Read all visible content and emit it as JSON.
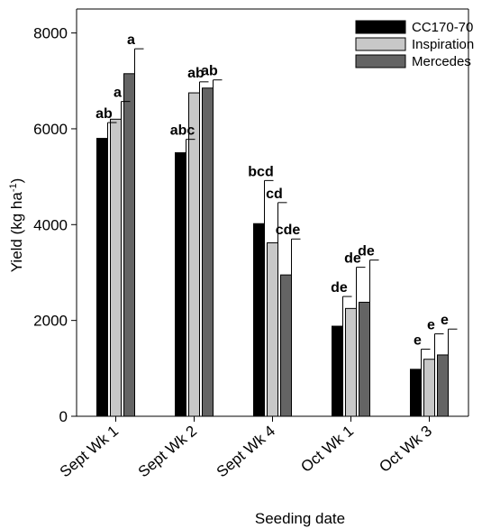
{
  "chart_data": {
    "type": "bar",
    "xlabel": "Seeding date",
    "ylabel_main": "Yield (kg ha",
    "ylabel_sup": "-1",
    "ylabel_close": ")",
    "ylim": [
      0,
      8500
    ],
    "yticks": [
      0,
      2000,
      4000,
      6000,
      8000
    ],
    "ytick_labels": [
      "0",
      "2000",
      "4000",
      "6000",
      "8000"
    ],
    "categories": [
      "Sept Wk 1",
      "Sept Wk 2",
      "Sept Wk 4",
      "Oct Wk 1",
      "Oct Wk 3"
    ],
    "legend_position": "top-right",
    "series": [
      {
        "name": "CC170-70",
        "color": "#000000",
        "values": [
          5800,
          5500,
          4020,
          1880,
          980
        ],
        "errors": [
          330,
          280,
          900,
          620,
          420
        ],
        "labels": [
          "ab",
          "abc",
          "bcd",
          "de",
          "e"
        ]
      },
      {
        "name": "Inspiration",
        "color": "#c8c8c8",
        "values": [
          6200,
          6750,
          3620,
          2250,
          1190
        ],
        "errors": [
          370,
          230,
          840,
          860,
          530
        ],
        "labels": [
          "a",
          "ab",
          "cd",
          "de",
          "e"
        ]
      },
      {
        "name": "Mercedes",
        "color": "#646464",
        "values": [
          7150,
          6850,
          2950,
          2380,
          1280
        ],
        "errors": [
          520,
          170,
          750,
          880,
          540
        ],
        "labels": [
          "a",
          "ab",
          "cde",
          "de",
          "e"
        ]
      }
    ]
  }
}
